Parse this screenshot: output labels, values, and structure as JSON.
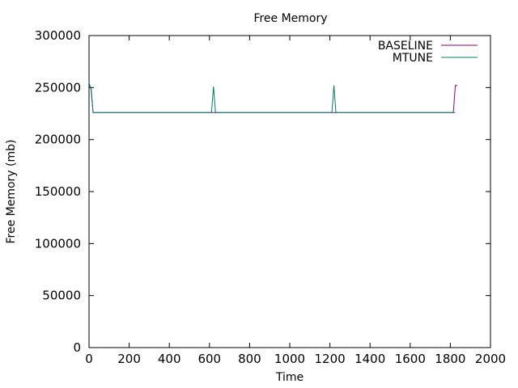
{
  "chart_data": {
    "type": "line",
    "title": "Free Memory",
    "xlabel": "Time",
    "ylabel": "Free Memory (mb)",
    "xlim": [
      0,
      2000
    ],
    "ylim": [
      0,
      300000
    ],
    "x_ticks": [
      0,
      200,
      400,
      600,
      800,
      1000,
      1200,
      1400,
      1600,
      1800,
      2000
    ],
    "y_ticks": [
      0,
      50000,
      100000,
      150000,
      200000,
      250000,
      300000
    ],
    "grid": false,
    "legend_position": "top-right",
    "series": [
      {
        "name": "BASELINE",
        "color": "#8b008b",
        "points": [
          [
            0,
            252000
          ],
          [
            10,
            250000
          ],
          [
            20,
            226000
          ],
          [
            1815,
            226000
          ],
          [
            1825,
            252000
          ],
          [
            1835,
            252000
          ]
        ]
      },
      {
        "name": "MTUNE",
        "color": "#008060",
        "points": [
          [
            0,
            255000
          ],
          [
            10,
            248000
          ],
          [
            20,
            226000
          ],
          [
            610,
            226000
          ],
          [
            620,
            251000
          ],
          [
            630,
            226000
          ],
          [
            1210,
            226000
          ],
          [
            1220,
            252000
          ],
          [
            1230,
            226000
          ],
          [
            1815,
            226000
          ],
          [
            1825,
            226000
          ]
        ]
      }
    ]
  }
}
